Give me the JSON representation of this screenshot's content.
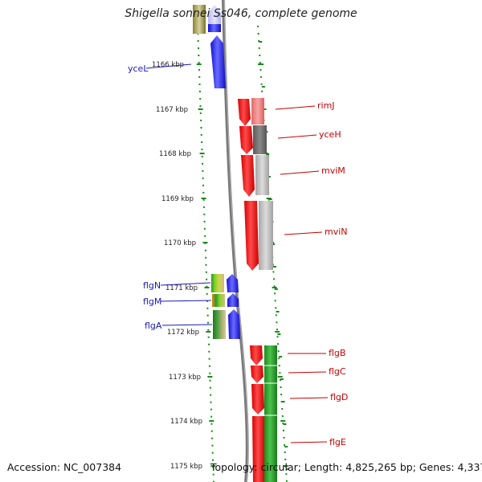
{
  "title": "Shigella sonnei Ss046, complete genome",
  "accession": "Accession: NC_007384",
  "summary": "Topology: circular; Length: 4,825,265 bp; Genes: 4,337",
  "colors": {
    "forward_gene": "#1a1aff",
    "reverse_gene": "#e00000",
    "label_blue": "#1a1ab8",
    "label_red": "#c80000",
    "tick_green": "#1a8a1a",
    "backbone": "#808080"
  },
  "ticks": [
    {
      "label": "1166 kbp"
    },
    {
      "label": "1167 kbp"
    },
    {
      "label": "1168 kbp"
    },
    {
      "label": "1169 kbp"
    },
    {
      "label": "1170 kbp"
    },
    {
      "label": "1171 kbp"
    },
    {
      "label": "1172 kbp"
    },
    {
      "label": "1173 kbp"
    },
    {
      "label": "1174 kbp"
    },
    {
      "label": "1175 kbp"
    }
  ],
  "genes_left": [
    {
      "name": "yceL"
    },
    {
      "name": "flgN"
    },
    {
      "name": "flgM"
    },
    {
      "name": "flgA"
    }
  ],
  "genes_right": [
    {
      "name": "rimJ"
    },
    {
      "name": "yceH"
    },
    {
      "name": "mviM"
    },
    {
      "name": "mviN"
    },
    {
      "name": "flgB"
    },
    {
      "name": "flgC"
    },
    {
      "name": "flgD"
    },
    {
      "name": "flgE"
    }
  ]
}
